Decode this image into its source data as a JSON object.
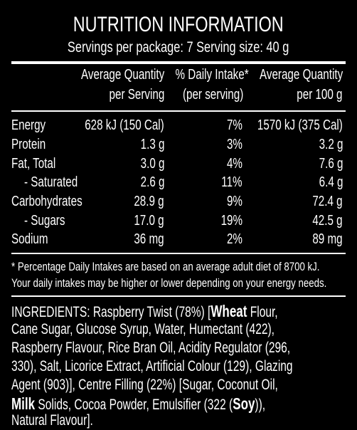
{
  "title": "NUTRITION INFORMATION",
  "servings_line": "Servings per package: 7  Serving size: 40 g",
  "headers": {
    "col1_line1": "Average Quantity",
    "col1_line2": "per Serving",
    "col2_line1": "% Daily Intake*",
    "col2_line2": "(per serving)",
    "col3_line1": "Average Quantity",
    "col3_line2": "per 100 g"
  },
  "rows": [
    {
      "name": "Energy",
      "per_serving": "628 kJ (150 Cal)",
      "daily_intake": "7%",
      "per_100g": "1570 kJ (375 Cal)"
    },
    {
      "name": "Protein",
      "per_serving": "1.3 g",
      "daily_intake": "3%",
      "per_100g": "3.2 g"
    },
    {
      "name": "Fat, Total",
      "per_serving": "3.0 g",
      "daily_intake": "4%",
      "per_100g": "7.6 g"
    },
    {
      "name": "- Saturated",
      "per_serving": "2.6 g",
      "daily_intake": "11%",
      "per_100g": "6.4 g"
    },
    {
      "name": "Carbohydrates",
      "per_serving": "28.9 g",
      "daily_intake": "9%",
      "per_100g": "72.4 g"
    },
    {
      "name": "- Sugars",
      "per_serving": "17.0 g",
      "daily_intake": "19%",
      "per_100g": "42.5 g"
    },
    {
      "name": "Sodium",
      "per_serving": "36 mg",
      "daily_intake": "2%",
      "per_100g": "89 mg"
    }
  ],
  "footnote": {
    "line1": "* Percentage Daily Intakes are based on an average adult diet of 8700 kJ.",
    "line2": "Your daily intakes may be higher or lower depending on your energy needs."
  },
  "ingredients": {
    "l1a": "INGREDIENTS: Raspberry Twist (78%) [",
    "l1b": "Wheat",
    "l1c": " Flour,",
    "l2": "Cane Sugar, Glucose Syrup, Water, Humectant (422),",
    "l3": "Raspberry Flavour, Rice Bran Oil, Acidity Regulator (296,",
    "l4": "330), Salt, Licorice Extract, Artificial Colour (129), Glazing",
    "l5": "Agent (903)], Centre Filling (22%) [Sugar, Coconut Oil,",
    "l6a": "Milk",
    "l6b": " Solids, Cocoa Powder, Emulsifier (322 (",
    "l6c": "Soy",
    "l6d": ")),",
    "l7": "Natural Flavour]."
  }
}
